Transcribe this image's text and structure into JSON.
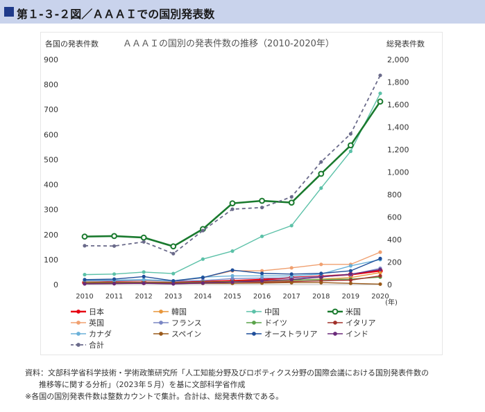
{
  "header": {
    "title": "第１-３-２図／ＡＡＡＩでの国別発表数"
  },
  "chart_data": {
    "type": "line",
    "title": "ＡＡＡＩの国別の発表件数の推移（2010-2020年）",
    "left_axis_label": "各国の発表件数",
    "right_axis_label": "総発表件数",
    "x_unit_label": "(年)",
    "x": [
      2010,
      2011,
      2012,
      2013,
      2014,
      2015,
      2016,
      2017,
      2018,
      2019,
      2020
    ],
    "ylim_left": [
      0,
      900
    ],
    "ylim_right": [
      0,
      2000
    ],
    "yticks_left": [
      "0",
      "100",
      "200",
      "300",
      "400",
      "500",
      "600",
      "700",
      "800",
      "900"
    ],
    "yticks_right": [
      "0",
      "200",
      "400",
      "600",
      "800",
      "1,000",
      "1,200",
      "1,400",
      "1,600",
      "1,800",
      "2,000"
    ],
    "series": [
      {
        "name": "日本",
        "axis": "left",
        "color": "#e60012",
        "values": [
          8,
          10,
          9,
          8,
          12,
          15,
          20,
          28,
          33,
          40,
          55
        ]
      },
      {
        "name": "韓国",
        "axis": "left",
        "color": "#e8963a",
        "values": [
          3,
          4,
          6,
          5,
          9,
          12,
          13,
          16,
          22,
          28,
          48
        ]
      },
      {
        "name": "中国",
        "axis": "left",
        "color": "#5cc1a8",
        "values": [
          40,
          42,
          50,
          44,
          102,
          134,
          193,
          236,
          386,
          533,
          765
        ]
      },
      {
        "name": "米国",
        "axis": "left",
        "color": "#1a7a2e",
        "values": [
          192,
          194,
          188,
          153,
          222,
          325,
          335,
          328,
          443,
          557,
          732
        ]
      },
      {
        "name": "英国",
        "axis": "left",
        "color": "#f0a070",
        "values": [
          12,
          15,
          16,
          14,
          28,
          55,
          55,
          67,
          81,
          81,
          130
        ]
      },
      {
        "name": "フランス",
        "axis": "left",
        "color": "#7a86c4",
        "values": [
          15,
          15,
          18,
          14,
          16,
          24,
          26,
          27,
          32,
          40,
          65
        ]
      },
      {
        "name": "ドイツ",
        "axis": "left",
        "color": "#5aa34a",
        "values": [
          8,
          8,
          9,
          8,
          10,
          12,
          15,
          18,
          20,
          22,
          30
        ]
      },
      {
        "name": "イタリア",
        "axis": "left",
        "color": "#a0302a",
        "values": [
          6,
          6,
          7,
          6,
          8,
          10,
          10,
          12,
          15,
          18,
          35
        ]
      },
      {
        "name": "カナダ",
        "axis": "left",
        "color": "#6ab0d8",
        "values": [
          18,
          18,
          20,
          15,
          30,
          35,
          35,
          35,
          42,
          75,
          100
        ]
      },
      {
        "name": "スペイン",
        "axis": "left",
        "color": "#9a5a1a",
        "values": [
          5,
          5,
          5,
          4,
          5,
          5,
          6,
          8,
          8,
          5,
          2
        ]
      },
      {
        "name": "オーストラリア",
        "axis": "left",
        "color": "#1f4e9a",
        "values": [
          20,
          22,
          32,
          15,
          28,
          58,
          45,
          42,
          45,
          55,
          104
        ]
      },
      {
        "name": "インド",
        "axis": "left",
        "color": "#6a2a7a",
        "values": [
          3,
          4,
          5,
          3,
          6,
          10,
          15,
          20,
          30,
          42,
          60
        ]
      },
      {
        "name": "合計",
        "axis": "right",
        "color": "#6a6a8a",
        "dashed": true,
        "values": [
          345,
          343,
          380,
          275,
          480,
          670,
          685,
          780,
          1090,
          1340,
          1860
        ]
      }
    ]
  },
  "source": {
    "line1": "資料：文部科学省科学技術・学術政策研究所「人工知能分野及びロボティクス分野の国際会議における国別発表件数の",
    "line2": "推移等に関する分析」（2023年５月）を基に文部科学省作成",
    "line3": "※各国の国別発表件数は整数カウントで集計。合計は、総発表件数である。"
  }
}
